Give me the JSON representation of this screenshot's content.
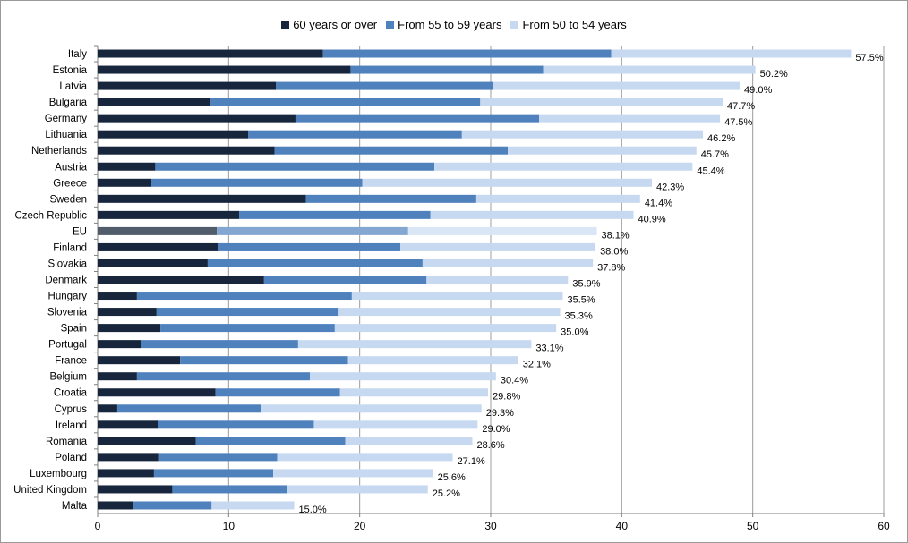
{
  "chart_data": {
    "type": "bar",
    "orientation": "horizontal",
    "stacked": true,
    "legend_position": "top",
    "grid": true,
    "xlim": [
      0,
      60
    ],
    "x_ticks": [
      "0",
      "10",
      "20",
      "30",
      "40",
      "50",
      "60"
    ],
    "categories": [
      "Italy",
      "Estonia",
      "Latvia",
      "Bulgaria",
      "Germany",
      "Lithuania",
      "Netherlands",
      "Austria",
      "Greece",
      "Sweden",
      "Czech Republic",
      "EU",
      "Finland",
      "Slovakia",
      "Denmark",
      "Hungary",
      "Slovenia",
      "Spain",
      "Portugal",
      "France",
      "Belgium",
      "Croatia",
      "Cyprus",
      "Ireland",
      "Romania",
      "Poland",
      "Luxembourg",
      "United Kingdom",
      "Malta"
    ],
    "highlight_category": "EU",
    "series": [
      {
        "name": "60 years or over",
        "color": "#17263d",
        "highlight_color": "#525d6c",
        "values": [
          17.2,
          19.3,
          13.6,
          8.6,
          15.1,
          11.5,
          13.5,
          4.4,
          4.1,
          15.9,
          10.8,
          9.1,
          9.2,
          8.4,
          12.7,
          3.0,
          4.5,
          4.8,
          3.3,
          6.3,
          3.0,
          9.0,
          1.5,
          4.6,
          7.5,
          4.7,
          4.3,
          5.7,
          2.7
        ]
      },
      {
        "name": "From 55 to 59 years",
        "color": "#4f81bd",
        "highlight_color": "#84a7d1",
        "values": [
          22.0,
          14.7,
          16.6,
          20.6,
          18.6,
          16.3,
          17.8,
          21.3,
          16.1,
          13.0,
          14.6,
          14.6,
          13.9,
          16.4,
          12.4,
          16.4,
          13.9,
          13.3,
          12.0,
          12.8,
          13.2,
          9.5,
          11.0,
          11.9,
          11.4,
          9.0,
          9.1,
          8.8,
          6.0
        ]
      },
      {
        "name": "From 50 to 54 years",
        "color": "#c6d9f1",
        "highlight_color": "#d9e6f5",
        "values": [
          18.3,
          16.2,
          18.8,
          18.5,
          13.8,
          18.4,
          14.4,
          19.7,
          22.1,
          12.5,
          15.5,
          14.4,
          14.9,
          13.0,
          10.8,
          16.1,
          16.9,
          16.9,
          17.8,
          13.0,
          14.2,
          11.3,
          16.8,
          12.5,
          9.7,
          13.4,
          12.2,
          10.7,
          6.3
        ]
      }
    ],
    "total_labels": [
      "57.5%",
      "50.2%",
      "49.0%",
      "47.7%",
      "47.5%",
      "46.2%",
      "45.7%",
      "45.4%",
      "42.3%",
      "41.4%",
      "40.9%",
      "38.1%",
      "38.0%",
      "37.8%",
      "35.9%",
      "35.5%",
      "35.3%",
      "35.0%",
      "33.1%",
      "32.1%",
      "30.4%",
      "29.8%",
      "29.3%",
      "29.0%",
      "28.6%",
      "27.1%",
      "25.6%",
      "25.2%",
      "15.0%"
    ],
    "totals": [
      57.5,
      50.2,
      49.0,
      47.7,
      47.5,
      46.2,
      45.7,
      45.4,
      42.3,
      41.4,
      40.9,
      38.1,
      38.0,
      37.8,
      35.9,
      35.5,
      35.3,
      35.0,
      33.1,
      32.1,
      30.4,
      29.8,
      29.3,
      29.0,
      28.6,
      27.1,
      25.6,
      25.2,
      15.0
    ]
  }
}
